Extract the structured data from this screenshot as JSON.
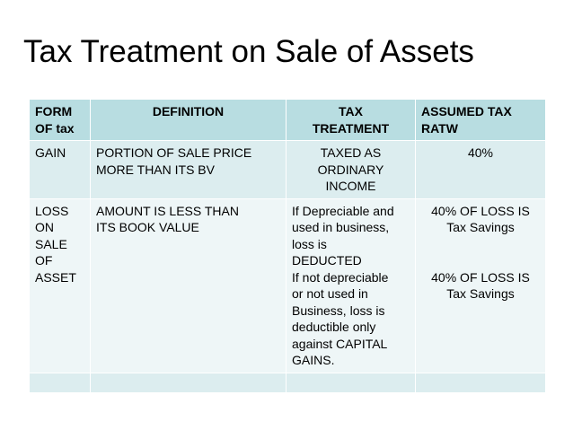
{
  "title": "Tax Treatment on Sale of Assets",
  "table": {
    "headers": {
      "form": [
        "FORM",
        "OF tax"
      ],
      "definition": "DEFINITION",
      "tax_treatment": [
        "TAX",
        "TREATMENT"
      ],
      "assumed_tax": [
        "ASSUMED TAX",
        "RATW"
      ]
    },
    "gain": {
      "form": "GAIN",
      "definition": [
        "PORTION OF SALE PRICE",
        "MORE THAN ITS BV"
      ],
      "treatment": [
        "TAXED AS",
        "ORDINARY",
        "INCOME"
      ],
      "rate": "40%"
    },
    "loss": {
      "form": [
        "LOSS",
        "ON",
        "SALE",
        "OF",
        "ASSET"
      ],
      "definition": [
        "AMOUNT IS LESS THAN",
        "ITS BOOK VALUE"
      ],
      "treatment": [
        "If Depreciable and",
        "used in business,",
        "loss is",
        "DEDUCTED",
        "If not depreciable",
        "or not used in",
        "Business, loss is",
        "deductible only",
        "against CAPITAL",
        "GAINS."
      ],
      "rate_1": [
        "40% OF LOSS IS",
        "Tax Savings"
      ],
      "rate_2": [
        "40% OF LOSS IS",
        "Tax Savings"
      ]
    }
  }
}
